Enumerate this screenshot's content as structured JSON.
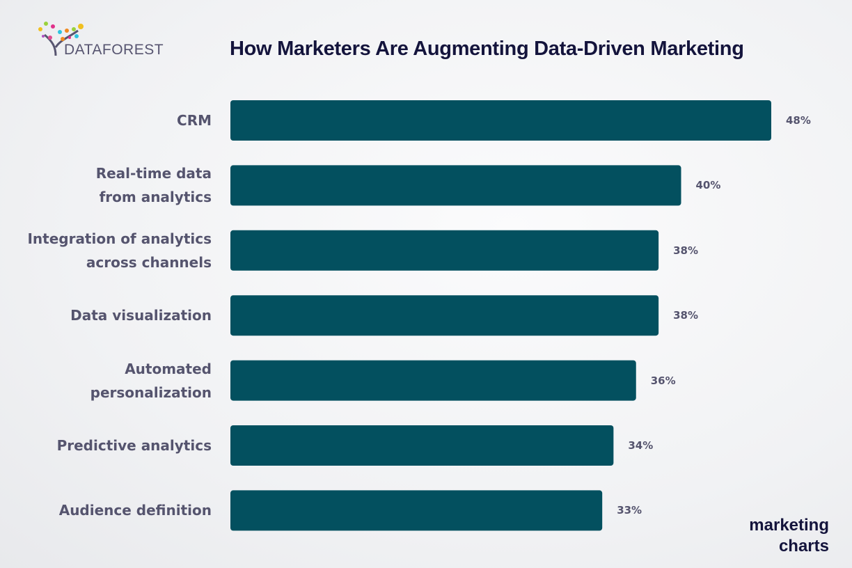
{
  "logo": {
    "text": "DATAFOREST"
  },
  "brand": {
    "line1": "marketing",
    "line2": "charts"
  },
  "chart_data": {
    "type": "bar",
    "orientation": "horizontal",
    "title": "How Marketers Are Augmenting Data-Driven Marketing",
    "categories": [
      "CRM",
      "Real-time data\nfrom analytics",
      "Integration of analytics\nacross channels",
      "Data visualization",
      "Automated\npersonalization",
      "Predictive analytics",
      "Audience definition"
    ],
    "values": [
      48,
      40,
      38,
      38,
      36,
      34,
      33
    ],
    "value_labels": [
      "48%",
      "40%",
      "38%",
      "38%",
      "36%",
      "34%",
      "33%"
    ],
    "xlim": [
      0,
      48
    ],
    "grid": false,
    "bar_color": "#03505f"
  }
}
